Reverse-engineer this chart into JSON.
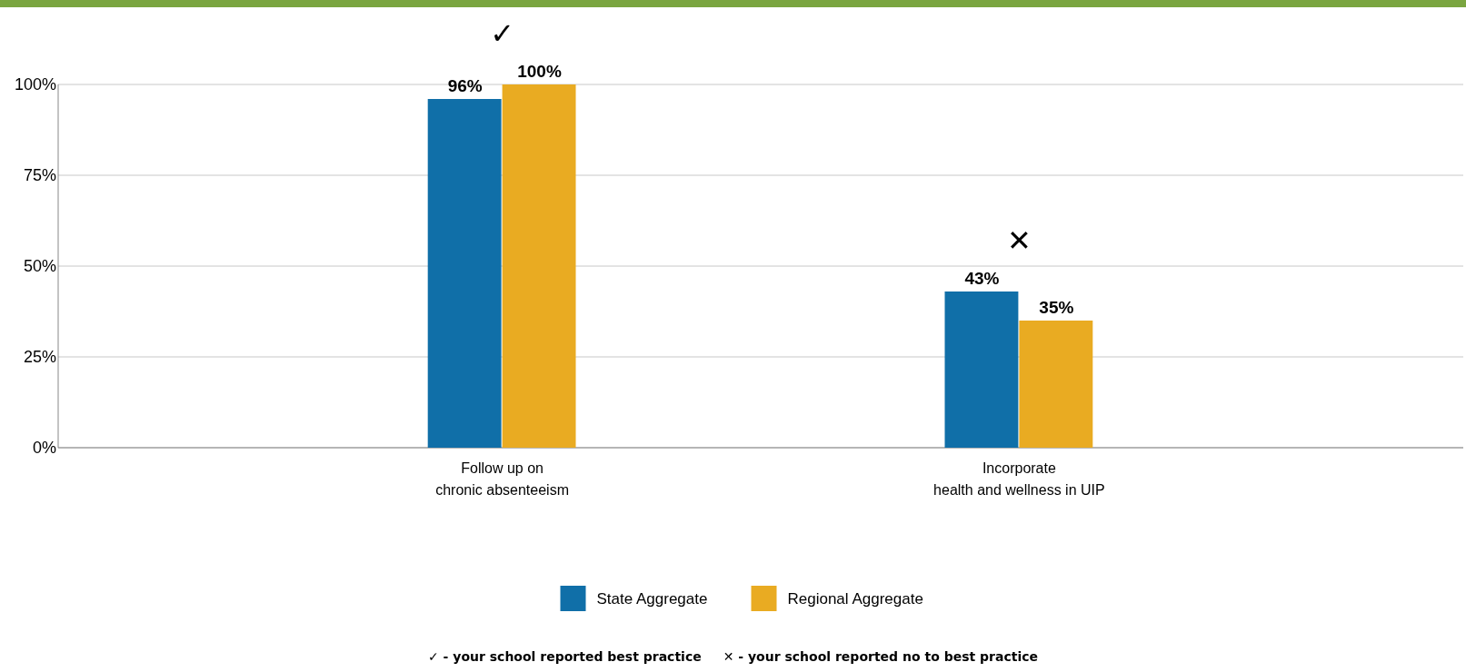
{
  "chart_data": {
    "type": "bar",
    "categories": [
      "Follow up on\nchronic absenteeism",
      "Incorporate\nhealth and wellness in UIP"
    ],
    "series": [
      {
        "name": "State Aggregate",
        "color": "#106fa8",
        "values": [
          96,
          43
        ],
        "value_labels": [
          "96%",
          "43%"
        ]
      },
      {
        "name": "Regional Aggregate",
        "color": "#e9ab22",
        "values": [
          100,
          35
        ],
        "value_labels": [
          "100%",
          "35%"
        ]
      }
    ],
    "ylim": [
      0,
      100
    ],
    "yticks": [
      {
        "value": 0,
        "label": "0%"
      },
      {
        "value": 25,
        "label": "25%"
      },
      {
        "value": 50,
        "label": "50%"
      },
      {
        "value": 75,
        "label": "75%"
      },
      {
        "value": 100,
        "label": "100%"
      }
    ],
    "grid": "y",
    "legend": "bottom",
    "annotations": [
      "✓",
      "✕",
      "✓ - your school reported best practice",
      "✕ - your school reported no to best practice"
    ]
  }
}
